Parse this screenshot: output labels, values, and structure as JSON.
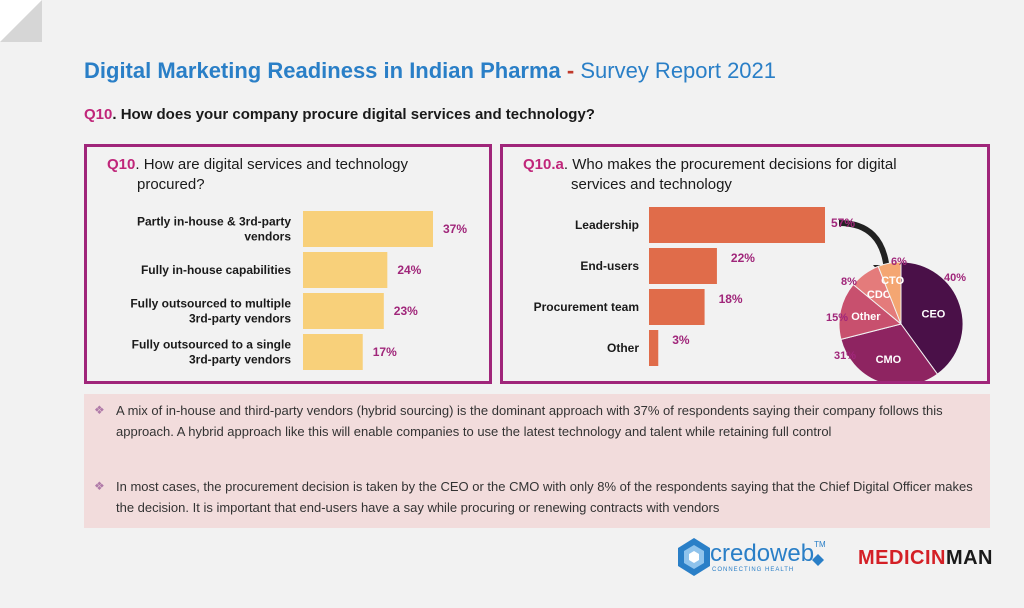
{
  "header": {
    "title_main": "Digital Marketing Readiness in Indian Pharma",
    "title_dash": " - ",
    "title_sub": "Survey Report 2021",
    "question_num": "Q10",
    "question_text": ". How does your company procure digital services and technology?"
  },
  "left_panel": {
    "qnum": "Q10",
    "title_line1": ". How are digital services and technology",
    "title_line2": "procured?"
  },
  "right_panel": {
    "qnum": "Q10.a",
    "title_line1": ". Who makes the procurement decisions for digital",
    "title_line2": "services and technology"
  },
  "chart_data": [
    {
      "type": "bar",
      "orientation": "horizontal",
      "categories": [
        [
          "Partly in-house & 3rd-party",
          "vendors"
        ],
        [
          "Fully in-house capabilities"
        ],
        [
          "Fully outsourced to multiple",
          "3rd-party vendors"
        ],
        [
          "Fully outsourced to a single",
          "3rd-party vendors"
        ]
      ],
      "values": [
        37,
        24,
        23,
        17
      ],
      "value_labels": [
        "37%",
        "24%",
        "23%",
        "17%"
      ],
      "color": "#f8d07a",
      "xlim": [
        0,
        37
      ]
    },
    {
      "type": "bar",
      "orientation": "horizontal",
      "categories": [
        "Leadership",
        "End-users",
        "Procurement team",
        "Other"
      ],
      "values": [
        57,
        22,
        18,
        3
      ],
      "value_labels": [
        "57%",
        "22%",
        "18%",
        "3%"
      ],
      "color": "#e06c4a",
      "xlim": [
        0,
        57
      ]
    },
    {
      "type": "pie",
      "labels": [
        "CEO",
        "CMO",
        "Other",
        "CDO",
        "CTO"
      ],
      "values": [
        40,
        31,
        15,
        8,
        6
      ],
      "value_labels": [
        "40%",
        "31%",
        "15%",
        "8%",
        "6%"
      ],
      "colors": [
        "#4a1048",
        "#8e2461",
        "#c8506e",
        "#e47b7b",
        "#f4a672"
      ]
    }
  ],
  "notes": [
    "A mix of in-house and third-party vendors (hybrid sourcing) is the dominant approach with 37% of respondents saying their company follows this approach. A hybrid approach like this will enable companies to use the latest technology and talent while retaining full control",
    "In most cases, the procurement decision is taken by the CEO or the CMO with only 8% of the respondents saying that the Chief Digital Officer makes the decision. It is important that end-users have a say while procuring or renewing contracts with vendors"
  ],
  "bullet_glyph": "❖",
  "logos": {
    "credoweb": "credoweb",
    "credoweb_tm": "TM",
    "credoweb_tag": "CONNECTING HEALTH",
    "medicinman_a": "MEDICIN",
    "medicinman_b": "MAN"
  },
  "colors": {
    "title_blue": "#2a7fc7",
    "accent_magenta": "#a0267a",
    "bar_yellow": "#f8d07a",
    "bar_orange": "#e06c4a",
    "notes_bg": "#f2dcdc"
  }
}
